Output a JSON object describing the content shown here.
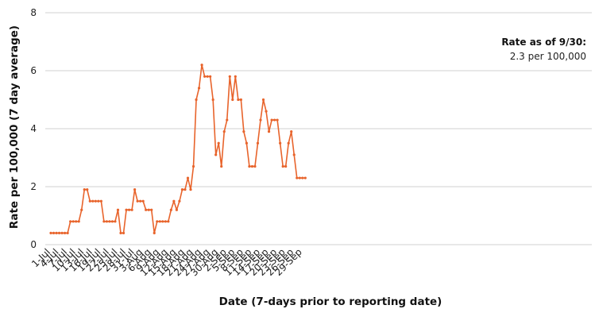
{
  "chart_data": {
    "type": "line",
    "xlabel": "Date (7-days prior to reporting date)",
    "ylabel": "Rate per 100,000 (7 day average)",
    "ylim": [
      0,
      8
    ],
    "yticks": [
      0,
      2,
      4,
      6,
      8
    ],
    "grid": "horizontal",
    "series_color": "#E8642C",
    "annotation": {
      "title": "Rate as of 9/30:",
      "text": "2.3 per 100,000"
    },
    "xtick_labels": [
      "1-Jul",
      "4-Jul",
      "7-Jul",
      "10-Jul",
      "13-Jul",
      "16-Jul",
      "19-Jul",
      "22-Jul",
      "25-Jul",
      "28-Jul",
      "31-Jul",
      "3-Aug",
      "6-Aug",
      "9-Aug",
      "12-Aug",
      "15-Aug",
      "18-Aug",
      "21-Aug",
      "24-Aug",
      "27-Aug",
      "30-Aug",
      "2-Sep",
      "5-Sep",
      "8-Sep",
      "11-Sep",
      "14-Sep",
      "17-Sep",
      "20-Sep",
      "23-Sep",
      "26-Sep",
      "29-Sep"
    ],
    "start_date": "1-Jul",
    "values": [
      0.4,
      0.4,
      0.4,
      0.4,
      0.4,
      0.4,
      0.4,
      0.8,
      0.8,
      0.8,
      0.8,
      1.2,
      1.9,
      1.9,
      1.5,
      1.5,
      1.5,
      1.5,
      1.5,
      0.8,
      0.8,
      0.8,
      0.8,
      0.8,
      1.2,
      0.4,
      0.4,
      1.2,
      1.2,
      1.2,
      1.9,
      1.5,
      1.5,
      1.5,
      1.2,
      1.2,
      1.2,
      0.4,
      0.8,
      0.8,
      0.8,
      0.8,
      0.8,
      1.2,
      1.5,
      1.2,
      1.5,
      1.9,
      1.9,
      2.3,
      1.9,
      2.7,
      5.0,
      5.4,
      6.2,
      5.8,
      5.8,
      5.8,
      5.0,
      3.1,
      3.5,
      2.7,
      3.9,
      4.3,
      5.8,
      5.0,
      5.8,
      5.0,
      5.0,
      3.9,
      3.5,
      2.7,
      2.7,
      2.7,
      3.5,
      4.3,
      5.0,
      4.6,
      3.9,
      4.3,
      4.3,
      4.3,
      3.5,
      2.7,
      2.7,
      3.5,
      3.9,
      3.1,
      2.3,
      2.3,
      2.3,
      2.3
    ]
  }
}
